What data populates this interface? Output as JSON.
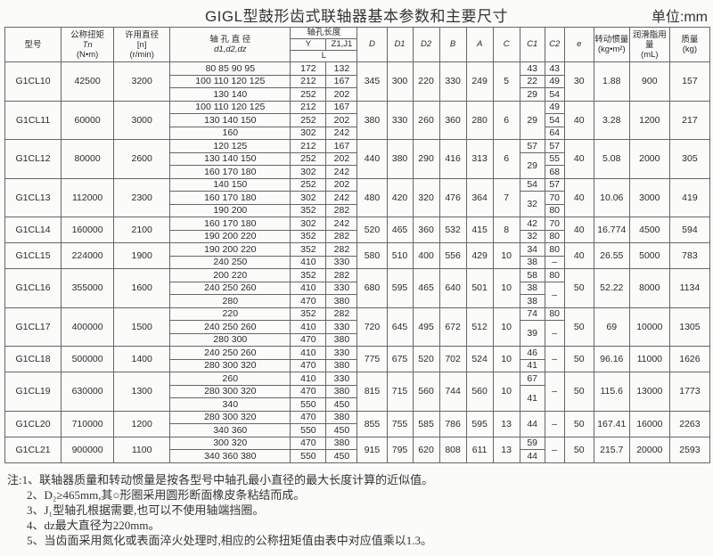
{
  "title": "GIGL型鼓形齿式联轴器基本参数和主要尺寸",
  "unit": "单位:mm",
  "headers": {
    "model": "型号",
    "torque": "公称扭矩",
    "torque_sym": "Tn",
    "torque_unit": "(N•m)",
    "speed": "许用直径",
    "speed_sym": "[n]",
    "speed_unit": "(r/min)",
    "bore": "轴 孔 直 径",
    "bore_sym": "d1,d2,dz",
    "length": "轴孔长度",
    "Y": "Y",
    "Z": "Z1,J1",
    "L": "L",
    "D": "D",
    "D1": "D1",
    "D2": "D2",
    "B": "B",
    "A": "A",
    "C": "C",
    "C1": "C1",
    "C2": "C2",
    "e": "e",
    "inertia": "转动惯量",
    "inertia_unit": "(kg•m²)",
    "grease": "润滑脂用量",
    "grease_unit": "(mL)",
    "mass": "质量",
    "mass_unit": "(kg)"
  },
  "rows": [
    {
      "model": "G1CL10",
      "torque": "42500",
      "speed": "3200",
      "bores": [
        [
          "80 85 90 95",
          "172",
          "132"
        ],
        [
          "100 110 120 125",
          "212",
          "167"
        ],
        [
          "130 140",
          "252",
          "202"
        ]
      ],
      "D": "345",
      "D1": "300",
      "D2": "220",
      "B": "330",
      "A": "249",
      "C": "5",
      "C1": [
        [
          "43",
          1
        ],
        [
          "22",
          1
        ],
        [
          "29",
          1
        ]
      ],
      "C2": [
        [
          "43",
          1
        ],
        [
          "49",
          1
        ],
        [
          "54",
          1
        ]
      ],
      "e": "30",
      "inertia": "1.88",
      "grease": "900",
      "mass": "157"
    },
    {
      "model": "G1CL11",
      "torque": "60000",
      "speed": "3000",
      "bores": [
        [
          "100 110 120 125",
          "212",
          "167"
        ],
        [
          "130 140 150",
          "252",
          "202"
        ],
        [
          "160",
          "302",
          "242"
        ]
      ],
      "D": "380",
      "D1": "330",
      "D2": "260",
      "B": "360",
      "A": "280",
      "C": "6",
      "C1": [
        [
          "29",
          3
        ]
      ],
      "C2": [
        [
          "49",
          1
        ],
        [
          "54",
          1
        ],
        [
          "64",
          1
        ]
      ],
      "e": "40",
      "inertia": "3.28",
      "grease": "1200",
      "mass": "217"
    },
    {
      "model": "G1CL12",
      "torque": "80000",
      "speed": "2600",
      "bores": [
        [
          "120 125",
          "212",
          "167"
        ],
        [
          "130 140 150",
          "252",
          "202"
        ],
        [
          "160 170 180",
          "302",
          "242"
        ]
      ],
      "D": "440",
      "D1": "380",
      "D2": "290",
      "B": "416",
      "A": "313",
      "C": "6",
      "C1": [
        [
          "57",
          1
        ],
        [
          "29",
          2
        ]
      ],
      "C2": [
        [
          "57",
          1
        ],
        [
          "55",
          1
        ],
        [
          "68",
          1
        ]
      ],
      "e": "40",
      "inertia": "5.08",
      "grease": "2000",
      "mass": "305"
    },
    {
      "model": "G1CL13",
      "torque": "112000",
      "speed": "2300",
      "bores": [
        [
          "140 150",
          "252",
          "202"
        ],
        [
          "160 170 180",
          "302",
          "242"
        ],
        [
          "190 200",
          "352",
          "282"
        ]
      ],
      "D": "480",
      "D1": "420",
      "D2": "320",
      "B": "476",
      "A": "364",
      "C": "7",
      "C1": [
        [
          "54",
          1
        ],
        [
          "32",
          2
        ]
      ],
      "C2": [
        [
          "57",
          1
        ],
        [
          "70",
          1
        ],
        [
          "80",
          1
        ]
      ],
      "e": "40",
      "inertia": "10.06",
      "grease": "3000",
      "mass": "419"
    },
    {
      "model": "G1CL14",
      "torque": "160000",
      "speed": "2100",
      "bores": [
        [
          "160 170 180",
          "302",
          "242"
        ],
        [
          "190 200 220",
          "352",
          "282"
        ]
      ],
      "D": "520",
      "D1": "465",
      "D2": "360",
      "B": "532",
      "A": "415",
      "C": "8",
      "C1": [
        [
          "42",
          1
        ],
        [
          "32",
          1
        ]
      ],
      "C2": [
        [
          "70",
          1
        ],
        [
          "80",
          1
        ]
      ],
      "e": "40",
      "inertia": "16.774",
      "grease": "4500",
      "mass": "594"
    },
    {
      "model": "G1CL15",
      "torque": "224000",
      "speed": "1900",
      "bores": [
        [
          "190 200 220",
          "352",
          "282"
        ],
        [
          "240 250",
          "410",
          "330"
        ]
      ],
      "D": "580",
      "D1": "510",
      "D2": "400",
      "B": "556",
      "A": "429",
      "C": "10",
      "C1": [
        [
          "34",
          1
        ],
        [
          "38",
          1
        ]
      ],
      "C2": [
        [
          "80",
          1
        ],
        [
          "–",
          1
        ]
      ],
      "e": "40",
      "inertia": "26.55",
      "grease": "5000",
      "mass": "783"
    },
    {
      "model": "G1CL16",
      "torque": "355000",
      "speed": "1600",
      "bores": [
        [
          "200 220",
          "352",
          "282"
        ],
        [
          "240 250 260",
          "410",
          "330"
        ],
        [
          "280",
          "470",
          "380"
        ]
      ],
      "D": "680",
      "D1": "595",
      "D2": "465",
      "B": "640",
      "A": "501",
      "C": "10",
      "C1": [
        [
          "58",
          1
        ],
        [
          "38",
          1
        ],
        [
          "38",
          1
        ]
      ],
      "C2": [
        [
          "80",
          1
        ],
        [
          "–",
          2
        ]
      ],
      "e": "50",
      "inertia": "52.22",
      "grease": "8000",
      "mass": "1134"
    },
    {
      "model": "G1CL17",
      "torque": "400000",
      "speed": "1500",
      "bores": [
        [
          "220",
          "352",
          "282"
        ],
        [
          "240 250 260",
          "410",
          "330"
        ],
        [
          "280 300",
          "470",
          "380"
        ]
      ],
      "D": "720",
      "D1": "645",
      "D2": "495",
      "B": "672",
      "A": "512",
      "C": "10",
      "C1": [
        [
          "74",
          1
        ],
        [
          "39",
          2
        ]
      ],
      "C2": [
        [
          "80",
          1
        ],
        [
          "–",
          2
        ]
      ],
      "e": "50",
      "inertia": "69",
      "grease": "10000",
      "mass": "1305"
    },
    {
      "model": "G1CL18",
      "torque": "500000",
      "speed": "1400",
      "bores": [
        [
          "240 250 260",
          "410",
          "330"
        ],
        [
          "280 300 320",
          "470",
          "380"
        ]
      ],
      "D": "775",
      "D1": "675",
      "D2": "520",
      "B": "702",
      "A": "524",
      "C": "10",
      "C1": [
        [
          "46",
          1
        ],
        [
          "41",
          1
        ]
      ],
      "C2": [
        [
          "–",
          2
        ]
      ],
      "e": "50",
      "inertia": "96.16",
      "grease": "11000",
      "mass": "1626"
    },
    {
      "model": "G1CL19",
      "torque": "630000",
      "speed": "1300",
      "bores": [
        [
          "260",
          "410",
          "330"
        ],
        [
          "280 300 320",
          "470",
          "380"
        ],
        [
          "340",
          "550",
          "450"
        ]
      ],
      "D": "815",
      "D1": "715",
      "D2": "560",
      "B": "744",
      "A": "560",
      "C": "10",
      "C1": [
        [
          "67",
          1
        ],
        [
          "41",
          2
        ]
      ],
      "C2": [
        [
          "–",
          3
        ]
      ],
      "e": "50",
      "inertia": "115.6",
      "grease": "13000",
      "mass": "1773"
    },
    {
      "model": "G1CL20",
      "torque": "710000",
      "speed": "1200",
      "bores": [
        [
          "280 300 320",
          "470",
          "380"
        ],
        [
          "340 360",
          "550",
          "450"
        ]
      ],
      "D": "855",
      "D1": "755",
      "D2": "585",
      "B": "786",
      "A": "595",
      "C": "13",
      "C1": [
        [
          "44",
          2
        ]
      ],
      "C2": [
        [
          "–",
          2
        ]
      ],
      "e": "50",
      "inertia": "167.41",
      "grease": "16000",
      "mass": "2263"
    },
    {
      "model": "G1CL21",
      "torque": "900000",
      "speed": "1100",
      "bores": [
        [
          "300 320",
          "470",
          "380"
        ],
        [
          "340 360 380",
          "550",
          "450"
        ]
      ],
      "D": "915",
      "D1": "795",
      "D2": "620",
      "B": "808",
      "A": "611",
      "C": "13",
      "C1": [
        [
          "59",
          1
        ],
        [
          "44",
          1
        ]
      ],
      "C2": [
        [
          "–",
          2
        ]
      ],
      "e": "50",
      "inertia": "215.7",
      "grease": "20000",
      "mass": "2593"
    }
  ],
  "notes": [
    "注:1、联轴器质量和转动惯量是按各型号中轴孔最小直径的最大长度计算的近似值。",
    "2、D₂≥465mm,其○形圈采用圆形断面橡皮条粘结而成。",
    "3、J₁型轴孔根据需要,也可以不使用轴端挡圈。",
    "4、dz最大直径为220mm。",
    "5、当齿面采用氮化或表面淬火处理时,相应的公称扭矩值由表中对应值乘以1.3。"
  ]
}
